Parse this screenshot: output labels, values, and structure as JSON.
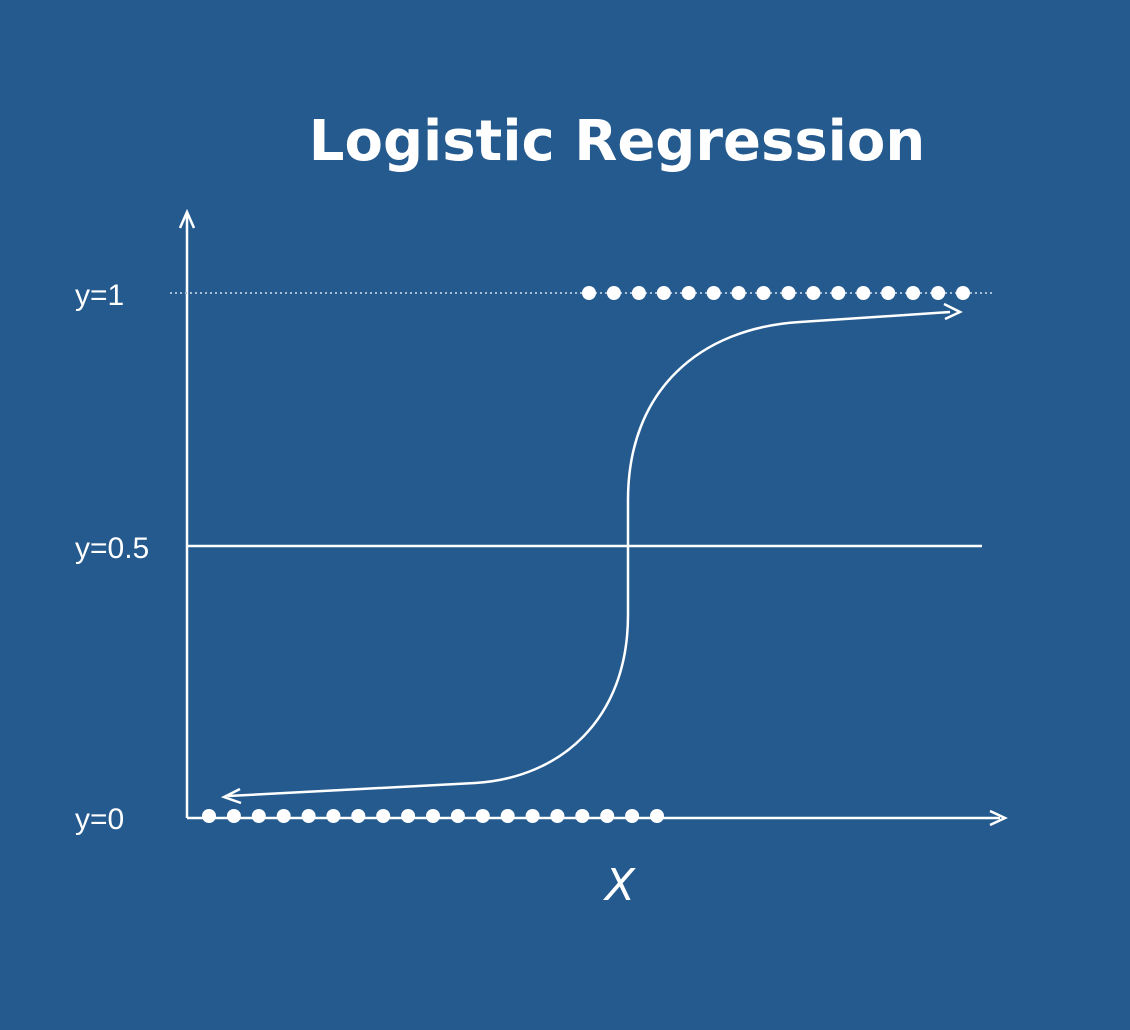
{
  "title": "Logistic Regression",
  "y_labels": {
    "y1": "y=1",
    "y05": "y=0.5",
    "y0": "y=0"
  },
  "x_label": "X",
  "colors": {
    "background": "#245a8e",
    "foreground": "#ffffff",
    "dotted_line": "#a9bfd6"
  },
  "points_class_0_count": 19,
  "points_class_1_count": 16
}
